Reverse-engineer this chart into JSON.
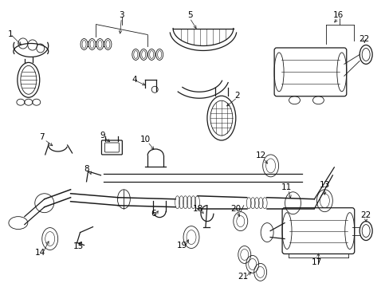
{
  "background_color": "#ffffff",
  "line_color": "#1a1a1a",
  "text_color": "#000000",
  "font_size": 7.5,
  "figsize": [
    4.89,
    3.6
  ],
  "dpi": 100
}
